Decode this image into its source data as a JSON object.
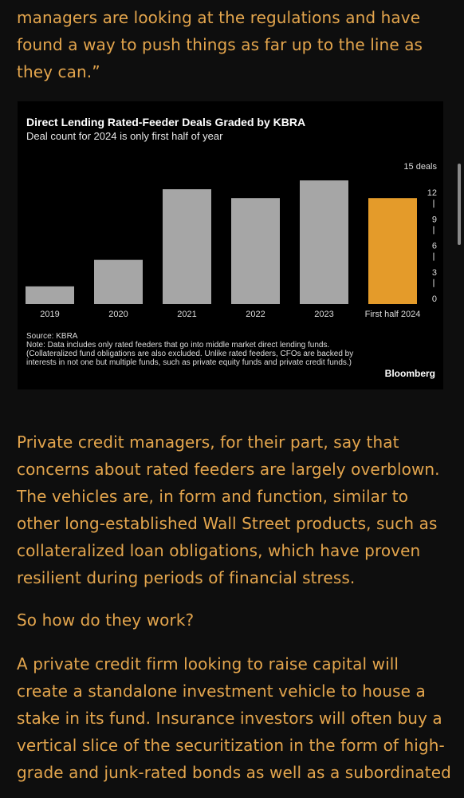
{
  "article": {
    "paragraph_top": "managers are looking at the regulations and have found a way to push things as far up to the line as they can.”",
    "paragraph_1": "Private credit managers, for their part, say that concerns about rated feeders are largely overblown. The vehicles are, in form and function, similar to other long-established Wall Street products, such as collateralized loan obligations, which have proven resilient during periods of financial stress.",
    "paragraph_2": "So how do they work?",
    "paragraph_3": "A private credit firm looking to raise capital will create a standalone investment vehicle to house a stake in its fund. Insurance investors will often buy a vertical slice of the securitization in the form of high-grade and junk-rated bonds as well as a subordinated"
  },
  "chart_card": {
    "title": "Direct Lending Rated-Feeder Deals Graded by KBRA",
    "subtitle": "Deal count for 2024 is only first half of year",
    "source": "Source: KBRA",
    "note": "Note: Data includes only rated feeders that go into middle market direct lending funds. (Collateralized fund obligations are also excluded. Unlike rated feeders, CFOs are backed by interests in not one but multiple funds, such as private equity funds and private credit funds.)",
    "brand": "Bloomberg"
  },
  "chart_data": {
    "type": "bar",
    "title": "Direct Lending Rated-Feeder Deals Graded by KBRA",
    "subtitle": "Deal count for 2024 is only first half of year",
    "categories": [
      "2019",
      "2020",
      "2021",
      "2022",
      "2023",
      "First half 2024"
    ],
    "values": [
      2,
      5,
      13,
      12,
      14,
      12
    ],
    "highlight_index": 5,
    "ylim": [
      0,
      15
    ],
    "yticks": [
      "0",
      "3",
      "6",
      "9",
      "12",
      "15 deals"
    ],
    "y_axis_position": "right",
    "grid": false,
    "colors": {
      "bar": "#a6a6a6",
      "highlight": "#e49b2a",
      "background": "#000000",
      "text": "#dddddd"
    }
  }
}
